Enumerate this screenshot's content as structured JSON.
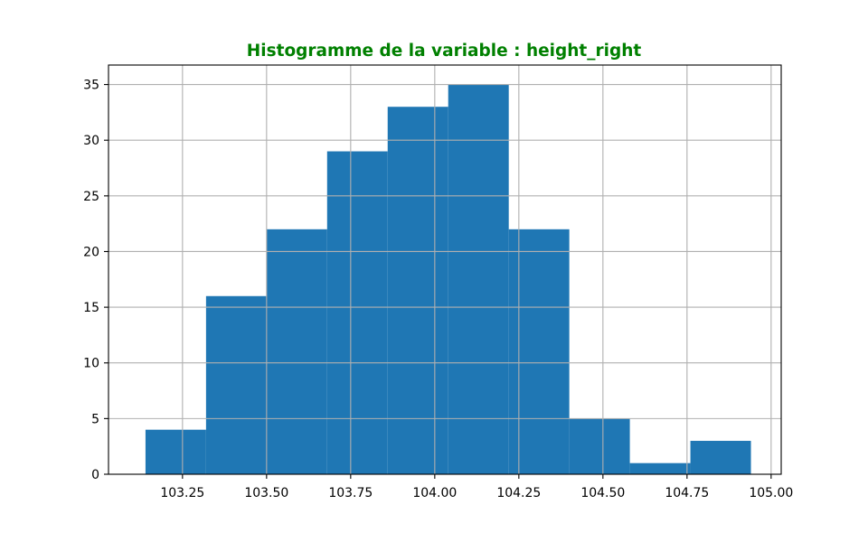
{
  "chart_data": {
    "type": "histogram",
    "title": "Histogramme de la variable : height_right",
    "title_color": "#008000",
    "bar_color": "#1f77b4",
    "grid": true,
    "xlim": [
      103.03,
      105.03
    ],
    "ylim": [
      0,
      36.75
    ],
    "bins": [
      {
        "x0": 103.14,
        "x1": 103.32,
        "count": 4
      },
      {
        "x0": 103.32,
        "x1": 103.5,
        "count": 16
      },
      {
        "x0": 103.5,
        "x1": 103.68,
        "count": 22
      },
      {
        "x0": 103.68,
        "x1": 103.86,
        "count": 29
      },
      {
        "x0": 103.86,
        "x1": 104.04,
        "count": 33
      },
      {
        "x0": 104.04,
        "x1": 104.22,
        "count": 35
      },
      {
        "x0": 104.22,
        "x1": 104.4,
        "count": 22
      },
      {
        "x0": 104.4,
        "x1": 104.58,
        "count": 5
      },
      {
        "x0": 104.58,
        "x1": 104.76,
        "count": 1
      },
      {
        "x0": 104.76,
        "x1": 104.94,
        "count": 3
      }
    ],
    "x_ticks": [
      {
        "value": 103.25,
        "label": "103.25"
      },
      {
        "value": 103.5,
        "label": "103.50"
      },
      {
        "value": 103.75,
        "label": "103.75"
      },
      {
        "value": 104.0,
        "label": "104.00"
      },
      {
        "value": 104.25,
        "label": "104.25"
      },
      {
        "value": 104.5,
        "label": "104.50"
      },
      {
        "value": 104.75,
        "label": "104.75"
      },
      {
        "value": 105.0,
        "label": "105.00"
      }
    ],
    "y_ticks": [
      {
        "value": 0,
        "label": "0"
      },
      {
        "value": 5,
        "label": "5"
      },
      {
        "value": 10,
        "label": "10"
      },
      {
        "value": 15,
        "label": "15"
      },
      {
        "value": 20,
        "label": "20"
      },
      {
        "value": 25,
        "label": "25"
      },
      {
        "value": 30,
        "label": "30"
      },
      {
        "value": 35,
        "label": "35"
      }
    ]
  }
}
